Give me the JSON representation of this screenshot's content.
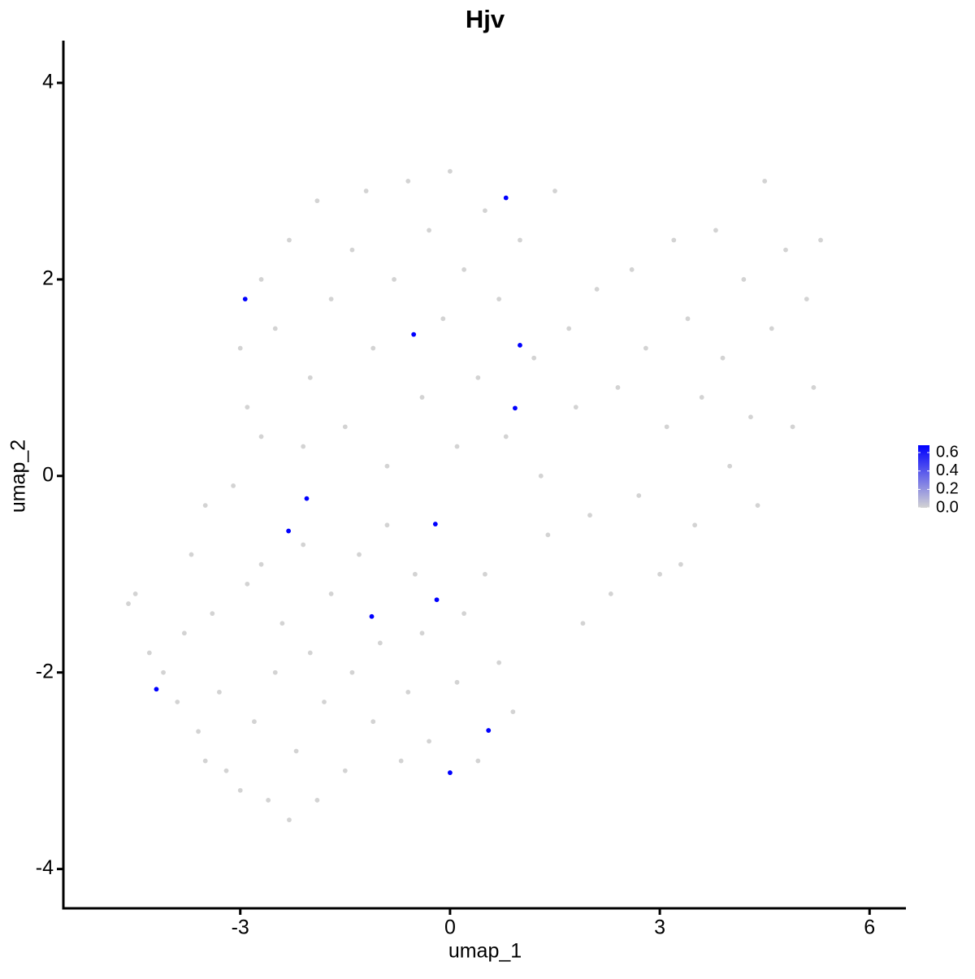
{
  "chart_data": {
    "type": "scatter",
    "title": "Hjv",
    "x_label": "umap_1",
    "y_label": "umap_2",
    "xlim": [
      -5.53,
      6.52
    ],
    "ylim": [
      -4.4,
      4.43
    ],
    "xticks": [
      -3,
      0,
      3,
      6
    ],
    "yticks": [
      -4,
      -2,
      0,
      2,
      4
    ],
    "low_color": "#d3d3d3",
    "high_color": "#0000ff",
    "clim": [
      0,
      0.68
    ],
    "cticks": [
      {
        "value": 0,
        "label": "0.0"
      },
      0.2,
      0.4,
      0.6
    ],
    "x": [
      -4.6,
      -4.5,
      -4.3,
      -4.1,
      -3.9,
      -3.8,
      -3.6,
      -3.5,
      -3.4,
      -3.3,
      -3.2,
      -3.0,
      -2.9,
      -2.8,
      -2.7,
      -2.6,
      -2.5,
      -2.4,
      -2.3,
      -2.2,
      -2.1,
      -2.0,
      -1.9,
      -1.8,
      -1.7,
      -1.5,
      -1.4,
      -1.3,
      -1.1,
      -1.0,
      -0.9,
      -0.7,
      -0.6,
      -0.5,
      -0.4,
      -0.3,
      0.1,
      0.2,
      0.4,
      0.5,
      0.7,
      0.9,
      -3.5,
      -3.7,
      -3.1,
      -2.7,
      -3.0,
      -2.9,
      -2.7,
      -2.5,
      -2.3,
      -2.1,
      -2.0,
      -1.9,
      -1.7,
      -1.5,
      -1.4,
      -1.2,
      -1.1,
      -0.9,
      -0.8,
      -0.6,
      -0.4,
      -0.3,
      -0.1,
      0.0,
      0.1,
      0.2,
      0.4,
      0.5,
      0.7,
      0.8,
      1.0,
      1.2,
      1.3,
      1.5,
      1.4,
      1.7,
      1.8,
      2.0,
      2.1,
      2.3,
      2.4,
      2.6,
      2.7,
      2.8,
      3.0,
      3.1,
      3.2,
      3.4,
      3.5,
      3.6,
      3.8,
      3.9,
      4.0,
      4.2,
      4.3,
      4.5,
      4.6,
      4.8,
      4.9,
      5.1,
      5.3,
      5.2,
      1.9,
      3.3,
      4.4,
      0.8,
      -2.93,
      -0.52,
      1.0,
      0.93,
      -2.05,
      -2.31,
      -0.21,
      -0.19,
      -1.12,
      -4.2,
      0.55,
      0.0
    ],
    "y": [
      -1.3,
      -1.2,
      -1.8,
      -2.0,
      -2.3,
      -1.6,
      -2.6,
      -2.9,
      -1.4,
      -2.2,
      -3.0,
      -3.2,
      -1.1,
      -2.5,
      -0.9,
      -3.3,
      -2.0,
      -1.5,
      -3.5,
      -2.8,
      -0.7,
      -1.8,
      -3.3,
      -2.3,
      -1.2,
      -3.0,
      -2.0,
      -0.8,
      -2.5,
      -1.7,
      -0.5,
      -2.9,
      -2.2,
      -1.0,
      -1.6,
      -2.7,
      -2.1,
      -1.4,
      -2.9,
      -1.0,
      -1.9,
      -2.4,
      -0.3,
      -0.8,
      -0.1,
      0.4,
      1.3,
      0.7,
      2.0,
      1.5,
      2.4,
      0.3,
      1.0,
      2.8,
      1.8,
      0.5,
      2.3,
      2.9,
      1.3,
      0.1,
      2.0,
      3.0,
      0.8,
      2.5,
      1.6,
      3.1,
      0.3,
      2.1,
      1.0,
      2.7,
      1.8,
      0.4,
      2.4,
      1.2,
      0.0,
      2.9,
      -0.6,
      1.5,
      0.7,
      -0.4,
      1.9,
      -1.2,
      0.9,
      2.1,
      -0.2,
      1.3,
      -1.0,
      0.5,
      2.4,
      1.6,
      -0.5,
      0.8,
      2.5,
      1.2,
      0.1,
      2.0,
      0.6,
      3.0,
      1.5,
      2.3,
      0.5,
      1.8,
      2.4,
      0.9,
      -1.5,
      -0.9,
      -0.3,
      2.83,
      1.8,
      1.44,
      1.33,
      0.69,
      -0.23,
      -0.56,
      -0.49,
      -1.26,
      -1.43,
      -2.17,
      -2.59,
      -3.02
    ],
    "expression": [
      0,
      0,
      0,
      0,
      0,
      0,
      0,
      0,
      0,
      0,
      0,
      0,
      0,
      0,
      0,
      0,
      0,
      0,
      0,
      0,
      0,
      0,
      0,
      0,
      0,
      0,
      0,
      0,
      0,
      0,
      0,
      0,
      0,
      0,
      0,
      0,
      0,
      0,
      0,
      0,
      0,
      0,
      0,
      0,
      0,
      0,
      0,
      0,
      0,
      0,
      0,
      0,
      0,
      0,
      0,
      0,
      0,
      0,
      0,
      0,
      0,
      0,
      0,
      0,
      0,
      0,
      0,
      0,
      0,
      0,
      0,
      0,
      0,
      0,
      0,
      0,
      0,
      0,
      0,
      0,
      0,
      0,
      0,
      0,
      0,
      0,
      0,
      0,
      0,
      0,
      0,
      0,
      0,
      0,
      0,
      0,
      0,
      0,
      0,
      0,
      0,
      0,
      0,
      0,
      0,
      0,
      0,
      0.68,
      0.68,
      0.68,
      0.68,
      0.68,
      0.68,
      0.68,
      0.68,
      0.68,
      0.68,
      0.68,
      0.68,
      0.68
    ]
  }
}
